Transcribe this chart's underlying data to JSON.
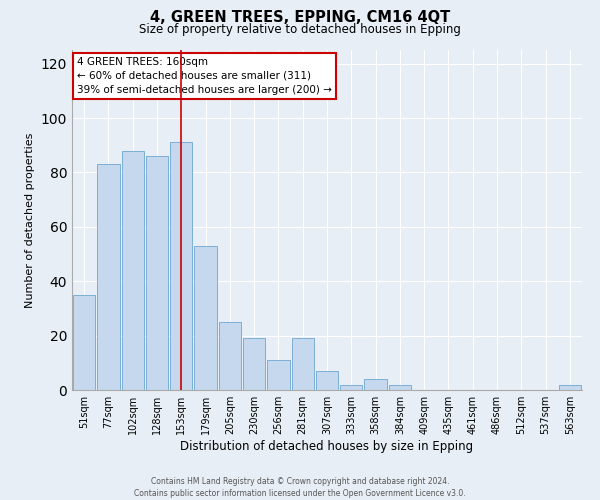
{
  "title": "4, GREEN TREES, EPPING, CM16 4QT",
  "subtitle": "Size of property relative to detached houses in Epping",
  "xlabel": "Distribution of detached houses by size in Epping",
  "ylabel": "Number of detached properties",
  "bar_labels": [
    "51sqm",
    "77sqm",
    "102sqm",
    "128sqm",
    "153sqm",
    "179sqm",
    "205sqm",
    "230sqm",
    "256sqm",
    "281sqm",
    "307sqm",
    "333sqm",
    "358sqm",
    "384sqm",
    "409sqm",
    "435sqm",
    "461sqm",
    "486sqm",
    "512sqm",
    "537sqm",
    "563sqm"
  ],
  "bar_values": [
    35,
    83,
    88,
    86,
    91,
    53,
    25,
    19,
    11,
    19,
    7,
    2,
    4,
    2,
    0,
    0,
    0,
    0,
    0,
    0,
    2
  ],
  "bar_color": "#c5d8ed",
  "bar_edge_color": "#7bafd4",
  "background_color": "#e8eef5",
  "grid_color": "#ffffff",
  "ylim": [
    0,
    125
  ],
  "yticks": [
    0,
    20,
    40,
    60,
    80,
    100,
    120
  ],
  "red_line_index": 4,
  "annotation_title": "4 GREEN TREES: 160sqm",
  "annotation_line1": "← 60% of detached houses are smaller (311)",
  "annotation_line2": "39% of semi-detached houses are larger (200) →",
  "annotation_box_color": "#ffffff",
  "annotation_border_color": "#cc0000",
  "footer1": "Contains HM Land Registry data © Crown copyright and database right 2024.",
  "footer2": "Contains public sector information licensed under the Open Government Licence v3.0."
}
